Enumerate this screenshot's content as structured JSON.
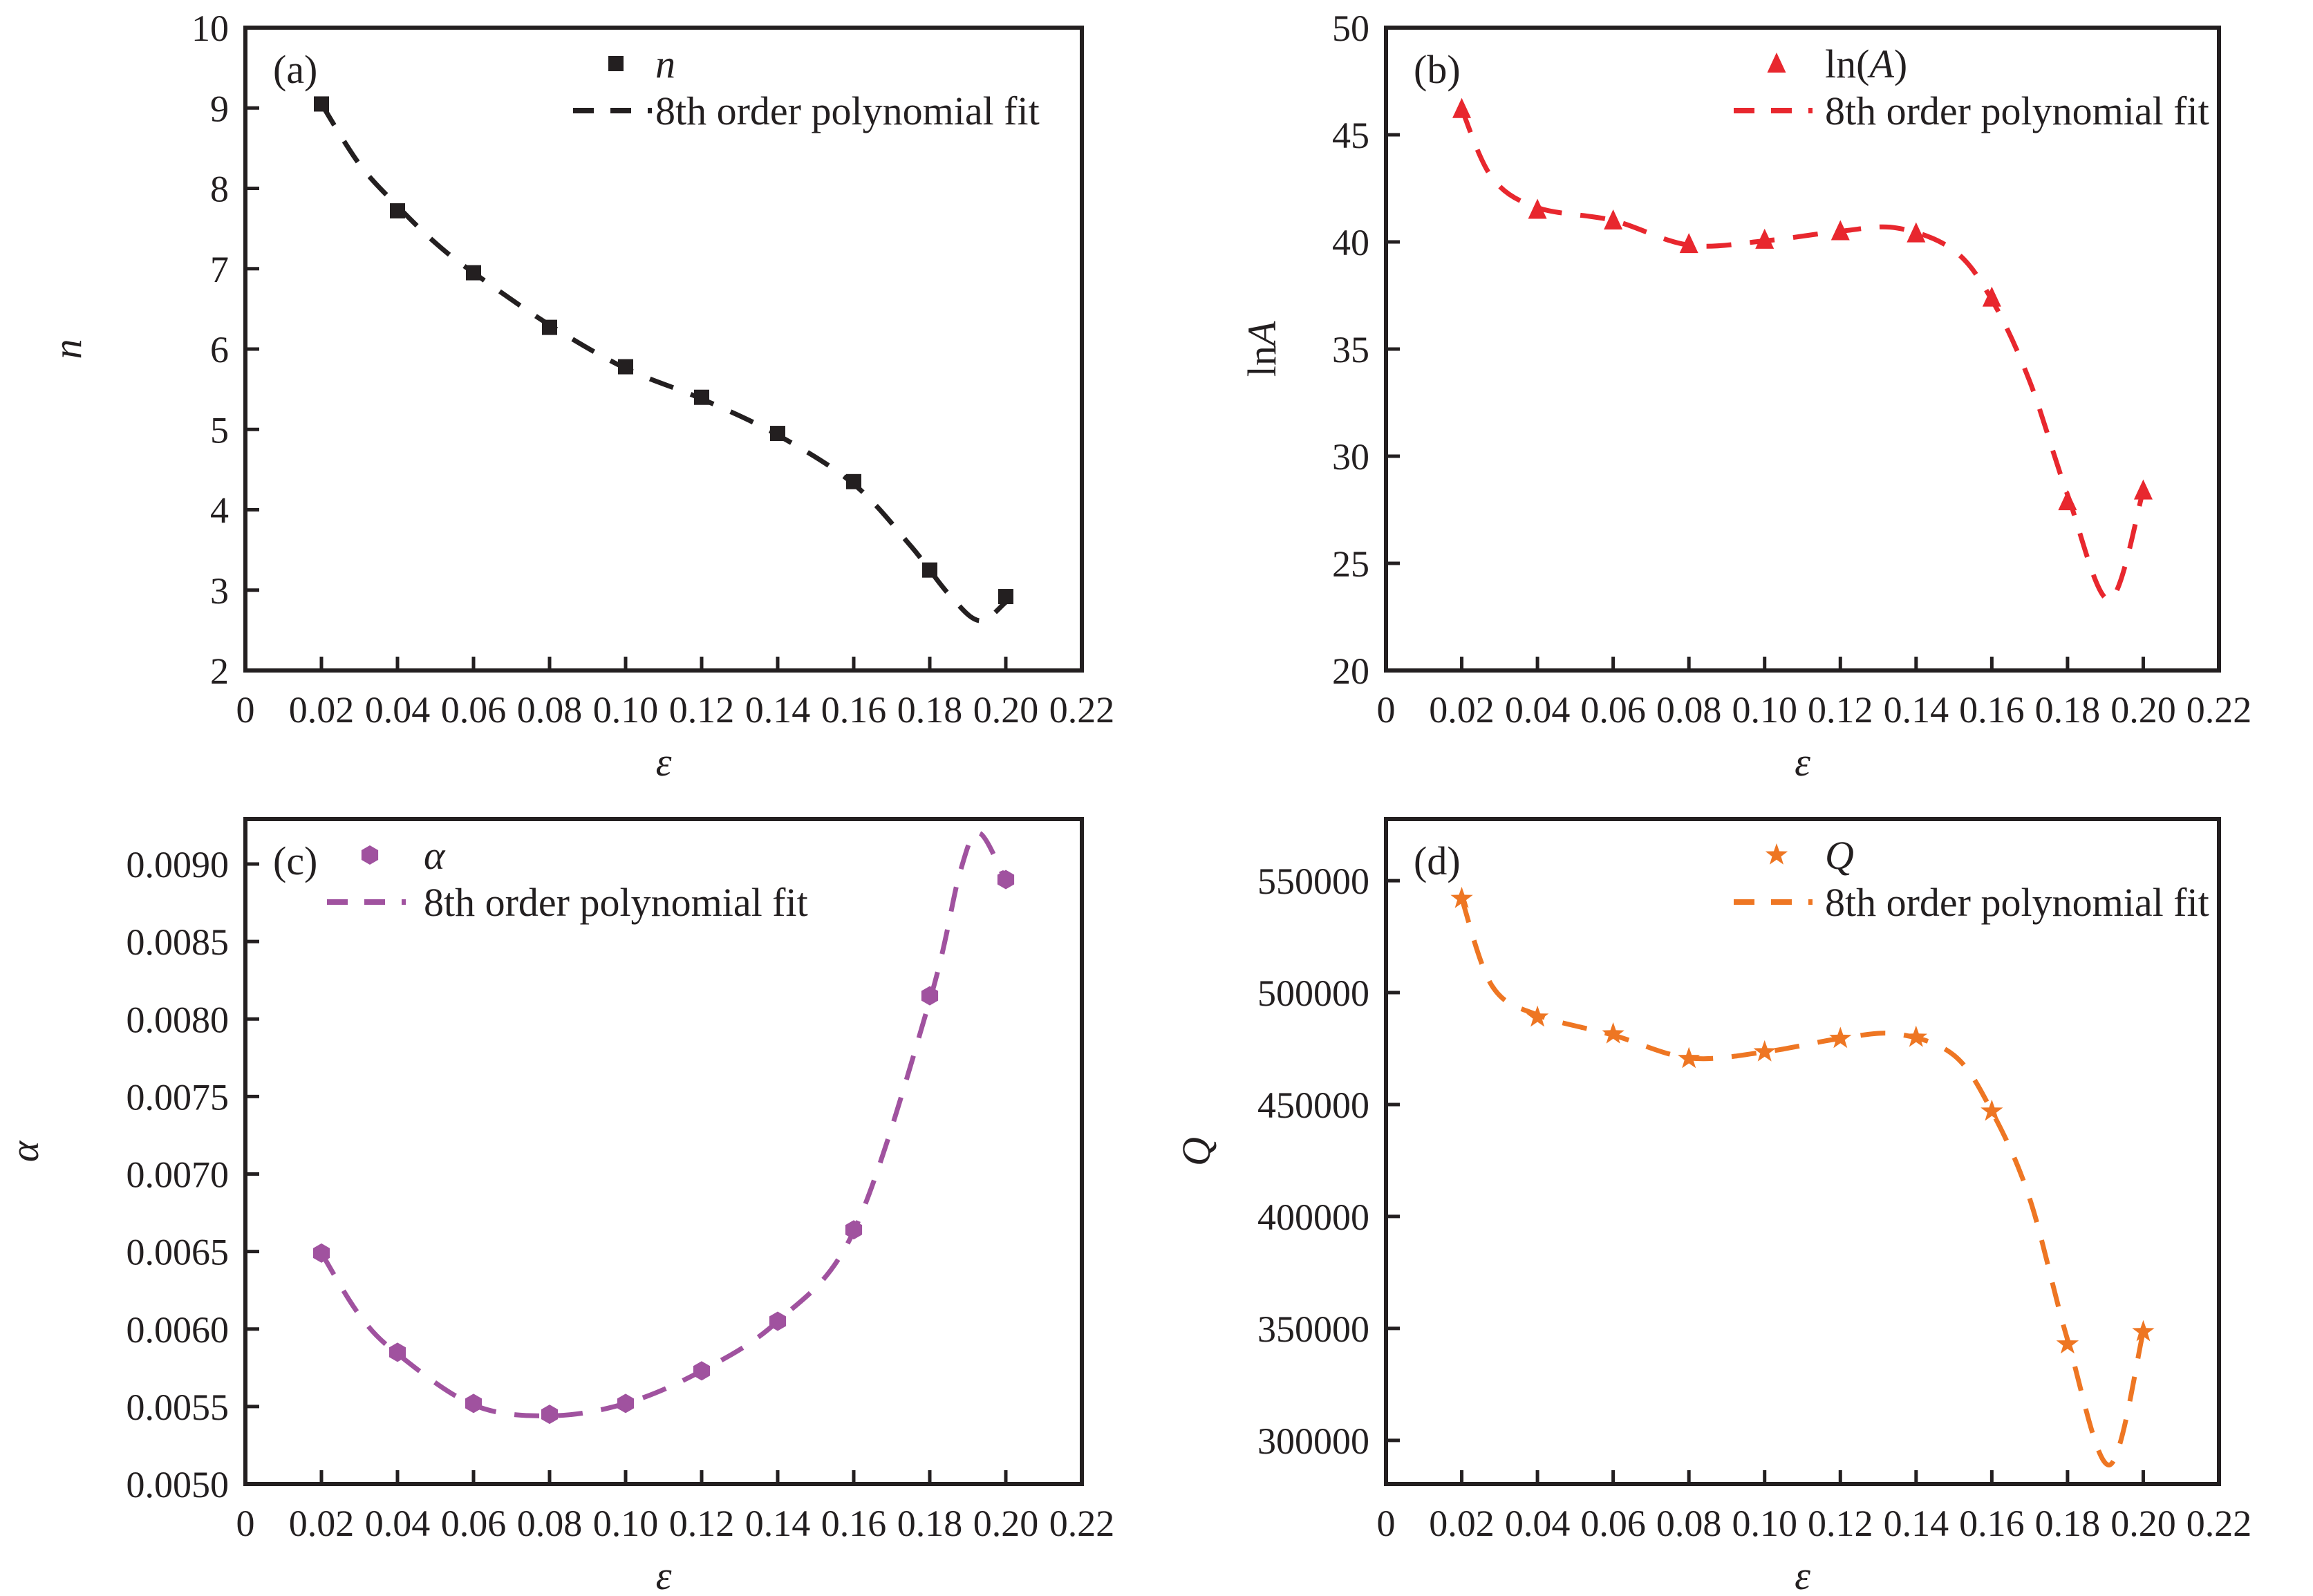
{
  "figure": {
    "background": "#ffffff",
    "axis_color": "#231f20",
    "x_values_shared": [
      0.02,
      0.04,
      0.06,
      0.08,
      0.1,
      0.12,
      0.14,
      0.16,
      0.18,
      0.2
    ],
    "xtick_values": [
      0,
      0.02,
      0.04,
      0.06,
      0.08,
      0.1,
      0.12,
      0.14,
      0.16,
      0.18,
      0.2,
      0.22
    ],
    "xtick_labels": [
      "0",
      "0.02",
      "0.04",
      "0.06",
      "0.08",
      "0.10",
      "0.12",
      "0.14",
      "0.16",
      "0.18",
      "0.20",
      "0.22"
    ],
    "xlabel": "ε"
  },
  "chart_data": [
    {
      "type": "scatter",
      "panel_key": "a",
      "panel_label": "(a)",
      "marker": "square",
      "color": "#231f20",
      "series_label_parts": [
        {
          "t": "n",
          "i": true
        }
      ],
      "fit_label": "8th order polynomial fit",
      "xlabel": "ε",
      "ylabel_parts": [
        {
          "t": "n",
          "i": true
        }
      ],
      "x": [
        0.02,
        0.04,
        0.06,
        0.08,
        0.1,
        0.12,
        0.14,
        0.16,
        0.18,
        0.2
      ],
      "y": [
        9.05,
        7.72,
        6.95,
        6.27,
        5.78,
        5.4,
        4.95,
        4.35,
        3.25,
        2.92
      ],
      "fit_x": [
        0.02,
        0.03,
        0.04,
        0.05,
        0.06,
        0.08,
        0.1,
        0.12,
        0.14,
        0.16,
        0.175,
        0.185,
        0.193,
        0.2
      ],
      "fit_y": [
        9.05,
        8.3,
        7.78,
        7.32,
        6.95,
        6.3,
        5.76,
        5.38,
        4.93,
        4.32,
        3.55,
        2.95,
        2.62,
        2.85
      ],
      "xlim": [
        0,
        0.22
      ],
      "ylim": [
        2,
        10
      ],
      "ytick_values": [
        2,
        3,
        4,
        5,
        6,
        7,
        8,
        9,
        10
      ],
      "ytick_labels": [
        "2",
        "3",
        "4",
        "5",
        "6",
        "7",
        "8",
        "9",
        "10"
      ],
      "legend_position": "top-center",
      "grid": false
    },
    {
      "type": "scatter",
      "panel_key": "b",
      "panel_label": "(b)",
      "marker": "triangle",
      "color": "#e8272e",
      "series_label_parts": [
        {
          "t": "ln(",
          "i": false
        },
        {
          "t": "A",
          "i": true
        },
        {
          "t": ")",
          "i": false
        }
      ],
      "fit_label": "8th order polynomial fit",
      "xlabel": "ε",
      "ylabel_parts": [
        {
          "t": "ln",
          "i": false
        },
        {
          "t": "A",
          "i": true
        }
      ],
      "x": [
        0.02,
        0.04,
        0.06,
        0.08,
        0.1,
        0.12,
        0.14,
        0.16,
        0.18,
        0.2
      ],
      "y": [
        46.2,
        41.5,
        41.0,
        39.9,
        40.1,
        40.5,
        40.4,
        37.4,
        27.9,
        28.4
      ],
      "fit_x": [
        0.02,
        0.028,
        0.04,
        0.06,
        0.08,
        0.1,
        0.12,
        0.135,
        0.15,
        0.16,
        0.17,
        0.18,
        0.191,
        0.2
      ],
      "fit_y": [
        46.2,
        43.0,
        41.6,
        41.0,
        39.85,
        40.05,
        40.5,
        40.65,
        39.6,
        37.3,
        33.5,
        28.2,
        23.3,
        28.4
      ],
      "xlim": [
        0,
        0.22
      ],
      "ylim": [
        20,
        50
      ],
      "ytick_values": [
        20,
        25,
        30,
        35,
        40,
        45,
        50
      ],
      "ytick_labels": [
        "20",
        "25",
        "30",
        "35",
        "40",
        "45",
        "50"
      ],
      "legend_position": "top-center",
      "grid": false
    },
    {
      "type": "scatter",
      "panel_key": "c",
      "panel_label": "(c)",
      "marker": "hexagon",
      "color": "#a0529f",
      "series_label_parts": [
        {
          "t": "α",
          "i": true
        }
      ],
      "fit_label": "8th order polynomial fit",
      "xlabel": "ε",
      "ylabel_parts": [
        {
          "t": "α",
          "i": true
        }
      ],
      "x": [
        0.02,
        0.04,
        0.06,
        0.08,
        0.1,
        0.12,
        0.14,
        0.16,
        0.18,
        0.2
      ],
      "y": [
        0.00649,
        0.00585,
        0.00552,
        0.00545,
        0.00552,
        0.00573,
        0.00605,
        0.00664,
        0.00815,
        0.0089
      ],
      "fit_x": [
        0.02,
        0.03,
        0.04,
        0.06,
        0.08,
        0.1,
        0.12,
        0.14,
        0.16,
        0.18,
        0.188,
        0.193,
        0.2
      ],
      "fit_y": [
        0.00649,
        0.00609,
        0.00584,
        0.00551,
        0.00544,
        0.00552,
        0.00573,
        0.00605,
        0.00663,
        0.00812,
        0.00895,
        0.0092,
        0.00889
      ],
      "xlim": [
        0,
        0.22
      ],
      "ylim": [
        0.005,
        0.00929
      ],
      "ytick_values": [
        0.005,
        0.0055,
        0.006,
        0.0065,
        0.007,
        0.0075,
        0.008,
        0.0085,
        0.009
      ],
      "ytick_labels": [
        "0.0050",
        "0.0055",
        "0.0060",
        "0.0065",
        "0.0070",
        "0.0075",
        "0.0080",
        "0.0085",
        "0.0090"
      ],
      "legend_position": "top-left",
      "grid": false
    },
    {
      "type": "scatter",
      "panel_key": "d",
      "panel_label": "(d)",
      "marker": "star",
      "color": "#ee7623",
      "series_label_parts": [
        {
          "t": "Q",
          "i": true
        }
      ],
      "fit_label": "8th order polynomial fit",
      "xlabel": "ε",
      "ylabel_parts": [
        {
          "t": "Q",
          "i": true
        }
      ],
      "x": [
        0.02,
        0.04,
        0.06,
        0.08,
        0.1,
        0.12,
        0.14,
        0.16,
        0.18,
        0.2
      ],
      "y": [
        542000,
        489000,
        481500,
        470500,
        473500,
        479500,
        480000,
        447000,
        343000,
        348500
      ],
      "fit_x": [
        0.02,
        0.028,
        0.04,
        0.06,
        0.08,
        0.1,
        0.12,
        0.135,
        0.15,
        0.16,
        0.17,
        0.18,
        0.191,
        0.2
      ],
      "fit_y": [
        542000,
        503000,
        490000,
        481000,
        470800,
        473500,
        479500,
        481500,
        472000,
        447000,
        408000,
        345000,
        289000,
        348500
      ],
      "xlim": [
        0,
        0.22
      ],
      "ylim": [
        280500,
        577500
      ],
      "ytick_values": [
        300000,
        350000,
        400000,
        450000,
        500000,
        550000
      ],
      "ytick_labels": [
        "300000",
        "350000",
        "400000",
        "450000",
        "500000",
        "550000"
      ],
      "legend_position": "top-center",
      "grid": false
    }
  ]
}
